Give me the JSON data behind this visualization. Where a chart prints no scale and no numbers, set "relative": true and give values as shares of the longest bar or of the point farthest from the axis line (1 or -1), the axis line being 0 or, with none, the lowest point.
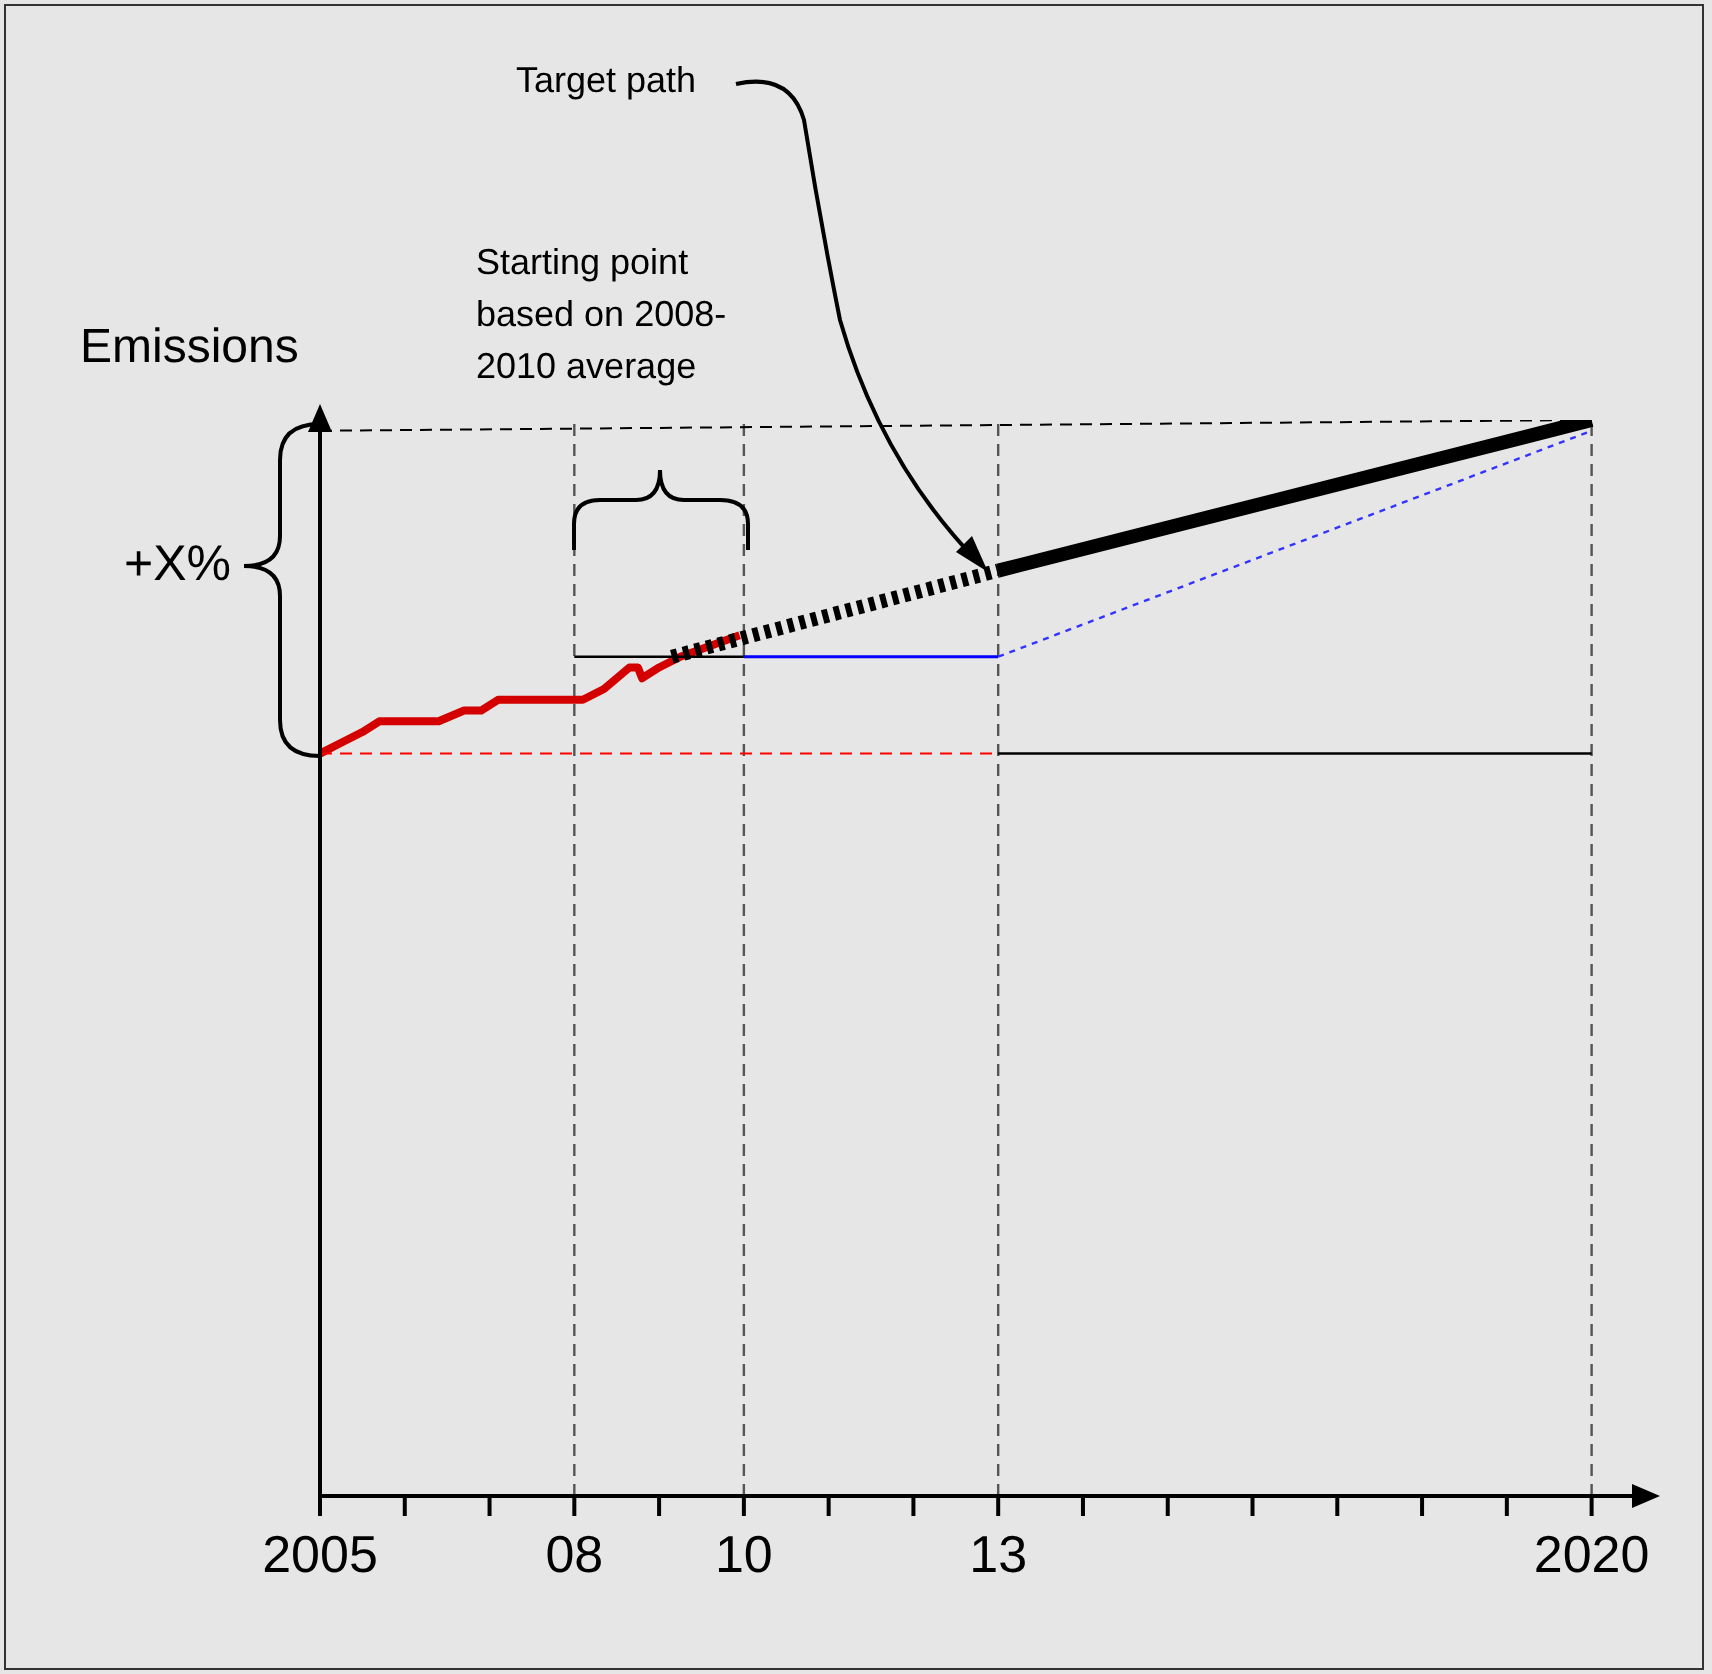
{
  "chart_data": {
    "type": "line",
    "relative": true,
    "ylabel": "Emissions",
    "marker": "none",
    "xlim": [
      2005,
      2020.5
    ],
    "xticks": [
      {
        "value": 2005,
        "label": "2005"
      },
      {
        "value": 2006,
        "label": null
      },
      {
        "value": 2007,
        "label": null
      },
      {
        "value": 2008,
        "label": "08"
      },
      {
        "value": 2009,
        "label": null
      },
      {
        "value": 2010,
        "label": "10"
      },
      {
        "value": 2011,
        "label": null
      },
      {
        "value": 2012,
        "label": null
      },
      {
        "value": 2013,
        "label": "13"
      },
      {
        "value": 2014,
        "label": null
      },
      {
        "value": 2015,
        "label": null
      },
      {
        "value": 2016,
        "label": null
      },
      {
        "value": 2017,
        "label": null
      },
      {
        "value": 2018,
        "label": null
      },
      {
        "value": 2019,
        "label": null
      },
      {
        "value": 2020,
        "label": "2020"
      }
    ],
    "series": [
      {
        "color": "#d40000",
        "line_style": "solid",
        "x": [
          2005,
          2005.25,
          2005.5,
          2005.7,
          2005.95,
          2006.4,
          2006.7,
          2006.9,
          2007.1,
          2007.35,
          2007.65,
          2007.9,
          2008.1,
          2008.35,
          2008.65,
          2008.75,
          2008.8,
          2009,
          2009.25,
          2009.6,
          2009.95
        ],
        "values": [
          0.69,
          0.7,
          0.71,
          0.72,
          0.72,
          0.72,
          0.73,
          0.73,
          0.74,
          0.74,
          0.74,
          0.74,
          0.74,
          0.75,
          0.77,
          0.77,
          0.76,
          0.77,
          0.78,
          0.79,
          0.8
        ]
      },
      {
        "color": "#000000",
        "line_style": "dotted",
        "x": [
          2009.15,
          2013
        ],
        "values": [
          0.78,
          0.86
        ]
      },
      {
        "color": "#000000",
        "line_style": "solid",
        "x": [
          2013,
          2020
        ],
        "values": [
          0.86,
          1
        ]
      },
      {
        "color": "#000000",
        "line_style": "solid",
        "x": [
          2008,
          2010
        ],
        "values": [
          0.78,
          0.78
        ]
      },
      {
        "color": "#0000ff",
        "line_style": "solid",
        "x": [
          2010,
          2013
        ],
        "values": [
          0.78,
          0.78
        ]
      },
      {
        "color": "#3333ff",
        "line_style": "dotted",
        "x": [
          2013,
          2020
        ],
        "values": [
          0.78,
          0.99
        ]
      },
      {
        "color": "#ff0000",
        "line_style": "dashed",
        "x": [
          2005,
          2013
        ],
        "values": [
          0.69,
          0.69
        ]
      },
      {
        "color": "#000000",
        "line_style": "solid",
        "x": [
          2013,
          2020
        ],
        "values": [
          0.69,
          0.69
        ]
      },
      {
        "color": "#000000",
        "line_style": "dashed",
        "x": [
          2005,
          2020
        ],
        "values": [
          0.99,
          1
        ]
      }
    ],
    "ref_lines": [
      {
        "axis": "x",
        "value": 2008,
        "color": "#555555",
        "line_style": "dashed"
      },
      {
        "axis": "x",
        "value": 2010,
        "color": "#555555",
        "line_style": "dashed"
      },
      {
        "axis": "x",
        "value": 2013,
        "color": "#555555",
        "line_style": "dashed"
      },
      {
        "axis": "x",
        "value": 2020,
        "color": "#555555",
        "line_style": "dashed"
      }
    ],
    "annotations": [
      "+X%",
      "Starting point based on 2008-2010 average",
      "Target path"
    ]
  }
}
